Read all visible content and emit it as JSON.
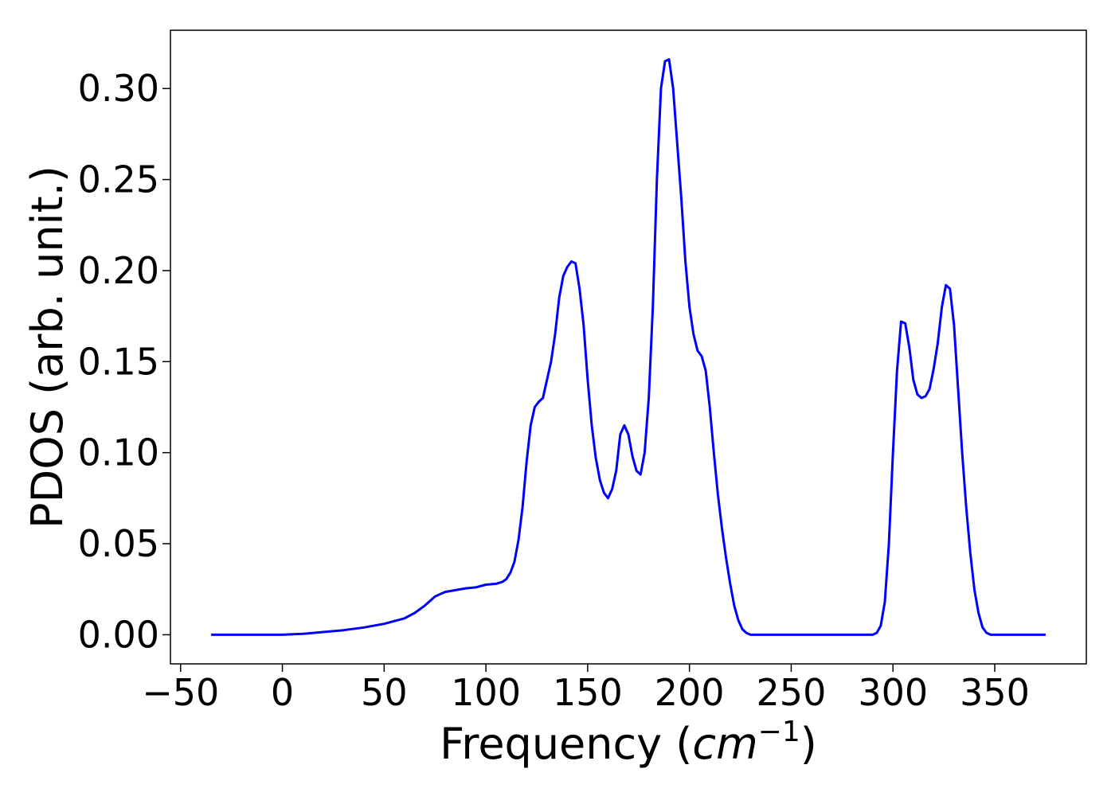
{
  "chart_data": {
    "type": "line",
    "title": "",
    "xlabel_text": "Frequency (",
    "xlabel_unit": "cm",
    "xlabel_exp": "−1",
    "xlabel_close": ")",
    "ylabel": "PDOS (arb. unit.)",
    "xlim": [
      -55,
      395
    ],
    "ylim": [
      -0.016,
      0.332
    ],
    "xticks": [
      -50,
      0,
      50,
      100,
      150,
      200,
      250,
      300,
      350
    ],
    "xtick_labels": [
      "−50",
      "0",
      "50",
      "100",
      "150",
      "200",
      "250",
      "300",
      "350"
    ],
    "yticks": [
      0.0,
      0.05,
      0.1,
      0.15,
      0.2,
      0.25,
      0.3
    ],
    "ytick_labels": [
      "0.00",
      "0.05",
      "0.10",
      "0.15",
      "0.20",
      "0.25",
      "0.30"
    ],
    "grid": false,
    "line_color": "#0000ff",
    "series": [
      {
        "x": [
          -35,
          -20,
          0,
          10,
          20,
          30,
          40,
          50,
          60,
          65,
          70,
          75,
          78,
          80,
          85,
          90,
          95,
          100,
          105,
          108,
          110,
          112,
          114,
          116,
          118,
          120,
          122,
          124,
          126,
          128,
          130,
          132,
          134,
          136,
          138,
          140,
          142,
          144,
          146,
          148,
          150,
          152,
          154,
          156,
          158,
          160,
          162,
          164,
          166,
          168,
          170,
          172,
          174,
          176,
          178,
          180,
          182,
          184,
          186,
          188,
          190,
          192,
          194,
          196,
          198,
          200,
          202,
          204,
          206,
          208,
          210,
          212,
          214,
          216,
          218,
          220,
          222,
          224,
          226,
          228,
          230,
          232,
          234,
          236,
          238,
          240,
          250,
          260,
          270,
          280,
          288,
          290,
          292,
          294,
          296,
          298,
          300,
          302,
          304,
          306,
          308,
          310,
          312,
          314,
          316,
          318,
          320,
          322,
          324,
          326,
          328,
          330,
          332,
          334,
          336,
          338,
          340,
          342,
          344,
          346,
          348,
          350,
          360,
          375
        ],
        "y": [
          0.0,
          0.0,
          0.0,
          0.0005,
          0.0015,
          0.0025,
          0.004,
          0.006,
          0.009,
          0.012,
          0.016,
          0.021,
          0.0225,
          0.0235,
          0.0245,
          0.0255,
          0.026,
          0.0275,
          0.028,
          0.029,
          0.0305,
          0.034,
          0.04,
          0.052,
          0.07,
          0.095,
          0.115,
          0.125,
          0.128,
          0.13,
          0.14,
          0.15,
          0.165,
          0.185,
          0.197,
          0.202,
          0.205,
          0.204,
          0.19,
          0.17,
          0.14,
          0.115,
          0.097,
          0.085,
          0.078,
          0.075,
          0.08,
          0.09,
          0.11,
          0.115,
          0.11,
          0.098,
          0.09,
          0.088,
          0.1,
          0.13,
          0.18,
          0.25,
          0.3,
          0.315,
          0.316,
          0.3,
          0.27,
          0.24,
          0.205,
          0.18,
          0.165,
          0.156,
          0.153,
          0.145,
          0.125,
          0.1,
          0.077,
          0.058,
          0.042,
          0.028,
          0.016,
          0.008,
          0.003,
          0.001,
          0.0,
          0.0,
          0.0,
          0.0,
          0.0,
          0.0,
          0.0,
          0.0,
          0.0,
          0.0,
          0.0,
          0.0,
          0.001,
          0.005,
          0.018,
          0.05,
          0.1,
          0.145,
          0.172,
          0.171,
          0.158,
          0.14,
          0.132,
          0.13,
          0.131,
          0.135,
          0.146,
          0.16,
          0.18,
          0.192,
          0.19,
          0.17,
          0.135,
          0.1,
          0.07,
          0.045,
          0.025,
          0.012,
          0.004,
          0.001,
          0.0,
          0.0,
          0.0,
          0.0
        ]
      }
    ]
  }
}
